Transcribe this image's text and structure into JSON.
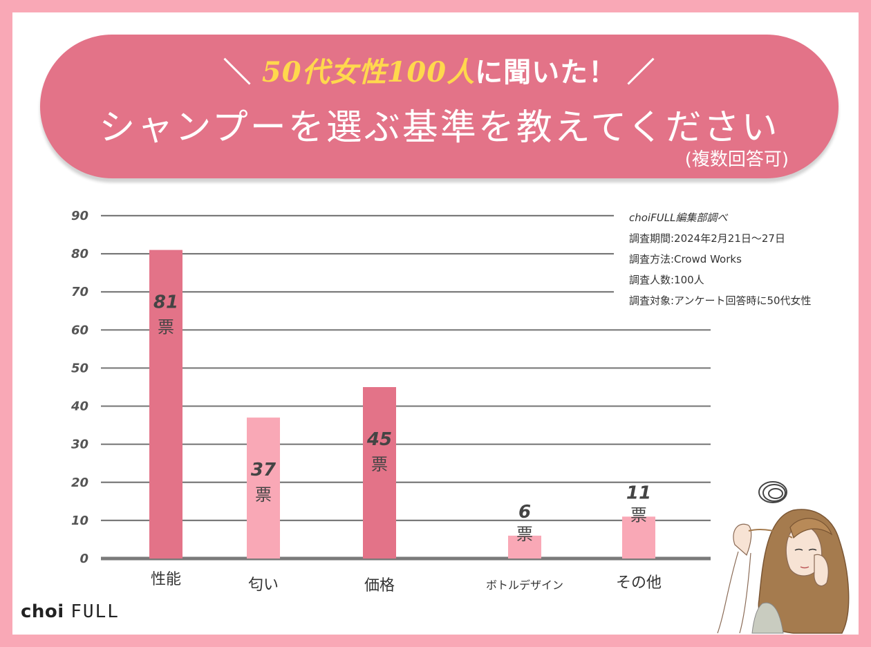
{
  "banner": {
    "prefix": "＼",
    "highlight": "50代女性100人",
    "line1_rest": "に聞いた！",
    "suffix": "／",
    "title": "シャンプーを選ぶ基準を教えてください",
    "note": "(複数回答可)"
  },
  "survey": {
    "source": "choiFULL編集部調べ",
    "period": "調査期間:2024年2月21日〜27日",
    "method": "調査方法:Crowd Works",
    "count": "調査人数:100人",
    "target": "調査対象:アンケート回答時に50代女性"
  },
  "logo": {
    "part1": "choi",
    "part2": "FULL"
  },
  "colors": {
    "dark_bar": "#e37388",
    "light_bar": "#f9a8b6",
    "grid": "#7a7a7a",
    "banner": "#e37388"
  },
  "chart_data": {
    "type": "bar",
    "categories": [
      "性能",
      "匂い",
      "価格",
      "ボトルデザイン",
      "その他"
    ],
    "values": [
      81,
      37,
      45,
      6,
      11
    ],
    "unit": "票",
    "ylim": [
      0,
      90
    ],
    "yticks": [
      0,
      10,
      20,
      30,
      40,
      50,
      60,
      70,
      80,
      90
    ],
    "grid": true,
    "bar_colors": [
      "#e37388",
      "#f9a8b6",
      "#e37388",
      "#f9a8b6",
      "#f9a8b6"
    ]
  }
}
